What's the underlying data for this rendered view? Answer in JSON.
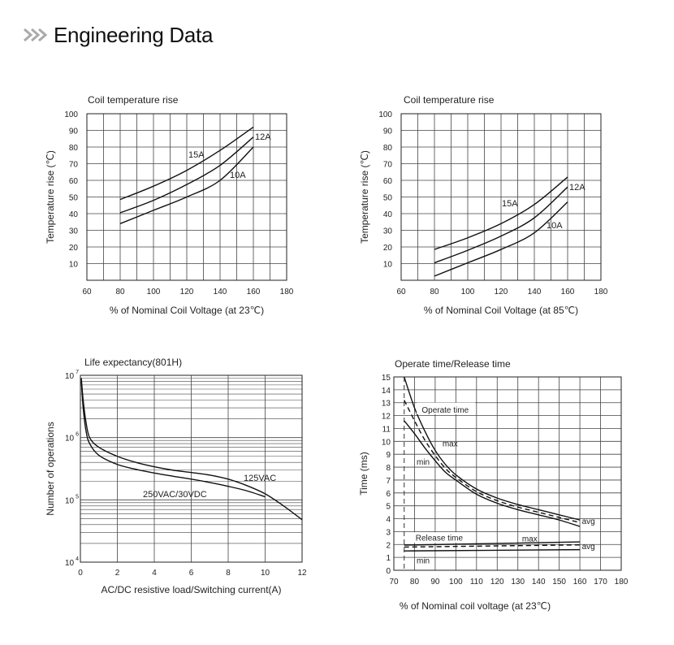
{
  "header": {
    "title": "Engineering Data",
    "icon": "double-chevron-icon"
  },
  "chart_data": [
    {
      "id": "coil23",
      "type": "line",
      "title": "Coil temperature rise",
      "xlabel": "% of Nominal Coil Voltage (at 23℃)",
      "ylabel": "Temperature rise (℃)",
      "xlim": [
        60,
        180
      ],
      "ylim": [
        0,
        100
      ],
      "xticks": [
        60,
        80,
        100,
        120,
        140,
        160,
        180
      ],
      "yticks": [
        10,
        20,
        30,
        40,
        50,
        60,
        70,
        80,
        90,
        100
      ],
      "grid": true,
      "series": [
        {
          "name": "15A",
          "x": [
            80,
            100,
            120,
            140,
            160
          ],
          "y": [
            48.5,
            56.5,
            66,
            78,
            92
          ]
        },
        {
          "name": "12A",
          "x": [
            80,
            100,
            120,
            140,
            160
          ],
          "y": [
            40.5,
            48,
            57.5,
            69,
            86
          ]
        },
        {
          "name": "10A",
          "x": [
            80,
            100,
            120,
            140,
            160
          ],
          "y": [
            34,
            42,
            50,
            60,
            80
          ]
        }
      ]
    },
    {
      "id": "coil85",
      "type": "line",
      "title": "Coil temperature rise",
      "xlabel": "% of Nominal Coil Voltage (at 85℃)",
      "ylabel": "Temperature rise (℃)",
      "xlim": [
        60,
        180
      ],
      "ylim": [
        0,
        100
      ],
      "xticks": [
        60,
        80,
        100,
        120,
        140,
        160,
        180
      ],
      "yticks": [
        10,
        20,
        30,
        40,
        50,
        60,
        70,
        80,
        90,
        100
      ],
      "grid": true,
      "series": [
        {
          "name": "15A",
          "x": [
            80,
            100,
            120,
            140,
            160
          ],
          "y": [
            18.5,
            25.5,
            34,
            45.5,
            62
          ]
        },
        {
          "name": "12A",
          "x": [
            80,
            100,
            120,
            140,
            160
          ],
          "y": [
            10.5,
            18,
            26.5,
            37.5,
            56
          ]
        },
        {
          "name": "10A",
          "x": [
            80,
            100,
            120,
            140,
            160
          ],
          "y": [
            2.5,
            10.5,
            18.5,
            28.5,
            47
          ]
        }
      ]
    },
    {
      "id": "life",
      "type": "line",
      "title": "Life expectancy(801H)",
      "xlabel": "AC/DC resistive load/Switching current(A)",
      "ylabel": "Number of operations",
      "xlim": [
        0,
        12
      ],
      "ylim": [
        10000,
        10000000
      ],
      "yscale": "log",
      "xticks": [
        0,
        2,
        4,
        6,
        8,
        10,
        12
      ],
      "yticks": [
        {
          "base": "10",
          "exp": "4"
        },
        {
          "base": "10",
          "exp": "5"
        },
        {
          "base": "10",
          "exp": "6"
        },
        {
          "base": "10",
          "exp": "7"
        }
      ],
      "grid": true,
      "series": [
        {
          "name": "125VAC",
          "x": [
            0.05,
            0.15,
            0.3,
            0.5,
            1,
            2,
            3,
            4,
            5,
            6,
            7,
            8,
            9,
            10,
            11,
            12
          ],
          "y": [
            9000000,
            4000000,
            1800000,
            1000000,
            700000,
            500000,
            400000,
            340000,
            300000,
            275000,
            250000,
            215000,
            170000,
            125000,
            80000,
            48000
          ]
        },
        {
          "name": "250VAC/30VDC",
          "x": [
            0.05,
            0.15,
            0.3,
            0.5,
            1,
            2,
            3,
            4,
            5,
            6,
            7,
            8,
            9,
            10
          ],
          "y": [
            8000000,
            3000000,
            1300000,
            800000,
            520000,
            370000,
            310000,
            270000,
            240000,
            215000,
            190000,
            165000,
            140000,
            112000
          ]
        }
      ]
    },
    {
      "id": "optime",
      "type": "line",
      "title": "Operate time/Release time",
      "xlabel": "% of Nominal coil voltage (at 23℃)",
      "ylabel": "Time (ms)",
      "xlim": [
        70,
        180
      ],
      "ylim": [
        0,
        15
      ],
      "xticks": [
        70,
        80,
        90,
        100,
        110,
        120,
        130,
        140,
        150,
        160,
        170,
        180
      ],
      "yticks": [
        0,
        1,
        2,
        3,
        4,
        5,
        6,
        7,
        8,
        9,
        10,
        11,
        12,
        13,
        14,
        15
      ],
      "grid": true,
      "reference_line_x": 75,
      "annotations": [
        "Operate time",
        "Release time"
      ],
      "series": [
        {
          "name": "max",
          "group": "Operate time",
          "dashed": false,
          "x": [
            75,
            80,
            85,
            90,
            95,
            100,
            110,
            120,
            130,
            140,
            150,
            160
          ],
          "y": [
            15,
            12.6,
            10.8,
            9.3,
            8.2,
            7.4,
            6.3,
            5.6,
            5.1,
            4.7,
            4.3,
            3.9
          ]
        },
        {
          "name": "avg",
          "group": "Operate time",
          "dashed": true,
          "x": [
            75,
            80,
            85,
            90,
            95,
            100,
            110,
            120,
            130,
            140,
            150,
            160
          ],
          "y": [
            13.2,
            11.6,
            10.1,
            8.9,
            7.9,
            7.2,
            6.1,
            5.4,
            4.9,
            4.5,
            4.1,
            3.7
          ]
        },
        {
          "name": "min",
          "group": "Operate time",
          "dashed": false,
          "x": [
            75,
            80,
            85,
            90,
            95,
            100,
            110,
            120,
            130,
            140,
            150,
            160
          ],
          "y": [
            11.6,
            10.6,
            9.5,
            8.5,
            7.6,
            7.0,
            5.9,
            5.2,
            4.7,
            4.3,
            3.9,
            3.4
          ]
        },
        {
          "name": "max",
          "group": "Release time",
          "dashed": false,
          "x": [
            75,
            160
          ],
          "y": [
            1.95,
            2.2
          ]
        },
        {
          "name": "avg",
          "group": "Release time",
          "dashed": true,
          "x": [
            75,
            160
          ],
          "y": [
            1.8,
            1.97
          ]
        },
        {
          "name": "min",
          "group": "Release time",
          "dashed": false,
          "x": [
            75,
            160
          ],
          "y": [
            1.5,
            1.6
          ]
        }
      ]
    }
  ]
}
